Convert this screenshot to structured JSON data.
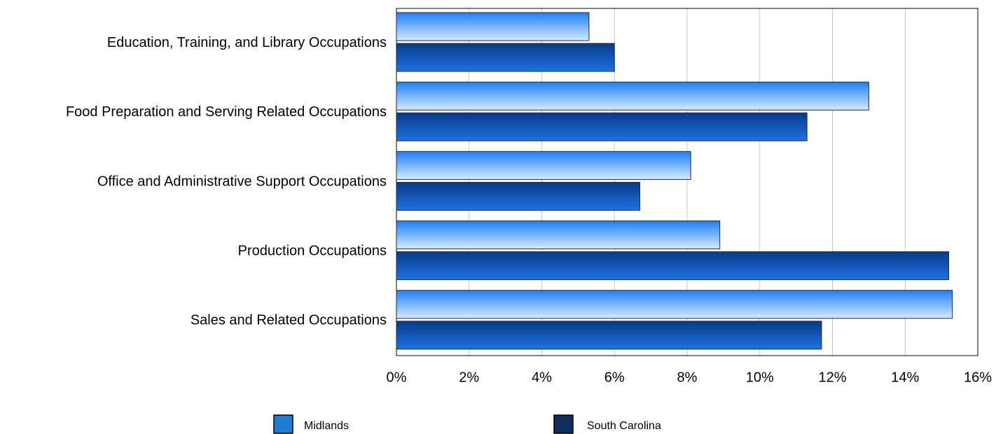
{
  "chart_data": {
    "type": "hbar",
    "categories": [
      "Education, Training, and Library Occupations",
      "Food Preparation and Serving Related Occupations",
      "Office and Administrative Support Occupations",
      "Production Occupations",
      "Sales and Related Occupations"
    ],
    "series": [
      {
        "name": "Midlands",
        "color": "#1a7fd4",
        "values": [
          5.3,
          13.0,
          8.1,
          8.9,
          15.3
        ]
      },
      {
        "name": "South Carolina",
        "color": "#0d2f5c",
        "values": [
          6.0,
          11.3,
          6.7,
          15.2,
          11.7
        ]
      }
    ],
    "xlim": [
      0,
      16
    ],
    "xticks": [
      {
        "value": 0,
        "label": "0%"
      },
      {
        "value": 2,
        "label": "2%"
      },
      {
        "value": 4,
        "label": "4%"
      },
      {
        "value": 6,
        "label": "6%"
      },
      {
        "value": 8,
        "label": "8%"
      },
      {
        "value": 10,
        "label": "10%"
      },
      {
        "value": 12,
        "label": "12%"
      },
      {
        "value": 14,
        "label": "14%"
      },
      {
        "value": 16,
        "label": "16%"
      }
    ],
    "grid": true
  }
}
